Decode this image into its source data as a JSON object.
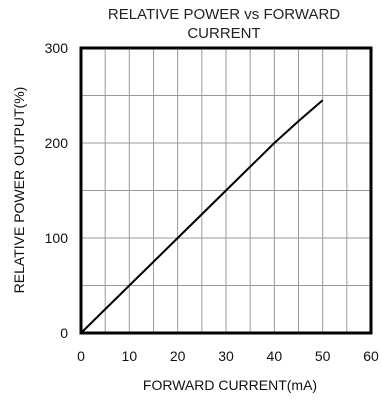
{
  "chart_data": {
    "type": "line",
    "title_lines": [
      "RELATIVE POWER vs FORWARD",
      "CURRENT"
    ],
    "xlabel": "FORWARD CURRENT(mA)",
    "ylabel": "RELATIVE POWER OUTPUT(%)",
    "xlim": [
      0,
      60
    ],
    "ylim": [
      0,
      300
    ],
    "x_ticks": [
      0,
      10,
      20,
      30,
      40,
      50,
      60
    ],
    "y_ticks": [
      0,
      100,
      200,
      300
    ],
    "x_grid": [
      0,
      5,
      10,
      15,
      20,
      25,
      30,
      35,
      40,
      45,
      50,
      55,
      60
    ],
    "y_grid": [
      0,
      50,
      100,
      150,
      200,
      250,
      300
    ],
    "grid": true,
    "series": [
      {
        "x": [
          0,
          5,
          10,
          15,
          20,
          25,
          30,
          35,
          40,
          45,
          50
        ],
        "y": [
          0,
          25,
          50,
          75,
          100,
          125,
          150,
          175,
          200,
          223,
          245
        ]
      }
    ]
  }
}
